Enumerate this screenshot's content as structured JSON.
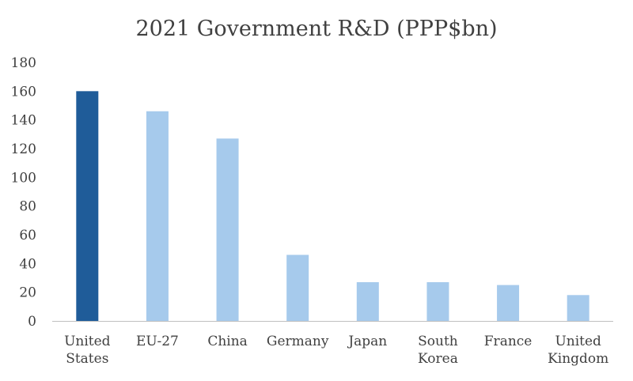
{
  "chart_data": {
    "type": "bar",
    "title": "2021 Government R&D (PPP$bn)",
    "categories": [
      [
        "United",
        "States"
      ],
      [
        "EU-27"
      ],
      [
        "China"
      ],
      [
        "Germany"
      ],
      [
        "Japan"
      ],
      [
        "South",
        "Korea"
      ],
      [
        "France"
      ],
      [
        "United",
        "Kingdom"
      ]
    ],
    "values": [
      160,
      146,
      127,
      46,
      27,
      27,
      25,
      18
    ],
    "ylim": [
      0,
      180
    ],
    "yticks": [
      0,
      20,
      40,
      60,
      80,
      100,
      120,
      140,
      160,
      180
    ],
    "grid": false,
    "legend": false,
    "highlight_index": 0,
    "colors": {
      "highlight": "#1f5c99",
      "bar": "#a6caec",
      "axis": "#bfbfbf",
      "text": "#404040"
    }
  }
}
